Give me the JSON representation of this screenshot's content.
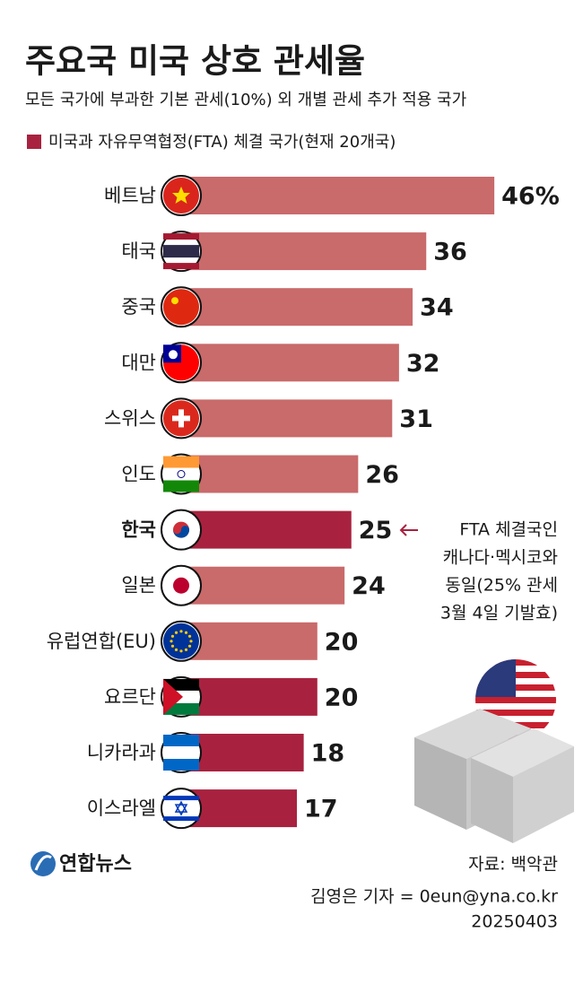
{
  "chart_data": {
    "type": "bar",
    "orientation": "horizontal",
    "title": "주요국 미국 상호 관세율",
    "subtitle": "모든 국가에 부과한 기본 관세(10%) 외 개별 관세 추가 적용 국가",
    "legend": {
      "label": "미국과 자유무역협정(FTA) 체결 국가(현재 20개국)",
      "color": "#a8223f"
    },
    "categories": [
      "베트남",
      "태국",
      "중국",
      "대만",
      "스위스",
      "인도",
      "한국",
      "일본",
      "유럽연합(EU)",
      "요르단",
      "니카라과",
      "이스라엘"
    ],
    "values": [
      46,
      36,
      34,
      32,
      31,
      26,
      25,
      24,
      20,
      20,
      18,
      17
    ],
    "value_labels": [
      "46%",
      "36",
      "34",
      "32",
      "31",
      "26",
      "25",
      "24",
      "20",
      "20",
      "18",
      "17"
    ],
    "colors": [
      "#c96a6b",
      "#c96a6b",
      "#c96a6b",
      "#c96a6b",
      "#c96a6b",
      "#c96a6b",
      "#a8223f",
      "#c96a6b",
      "#c96a6b",
      "#a8223f",
      "#a8223f",
      "#a8223f"
    ],
    "annotation": {
      "lines": [
        "FTA 체결국인",
        "캐나다·멕시코와",
        "동일(25% 관세",
        "3월 4일 기발효)"
      ],
      "color": "#a8223f"
    },
    "source": "자료: 백악관",
    "credit": "김영은 기자 = 0eun@yna.co.kr",
    "date": "20250403",
    "logo": "연합뉴스"
  }
}
